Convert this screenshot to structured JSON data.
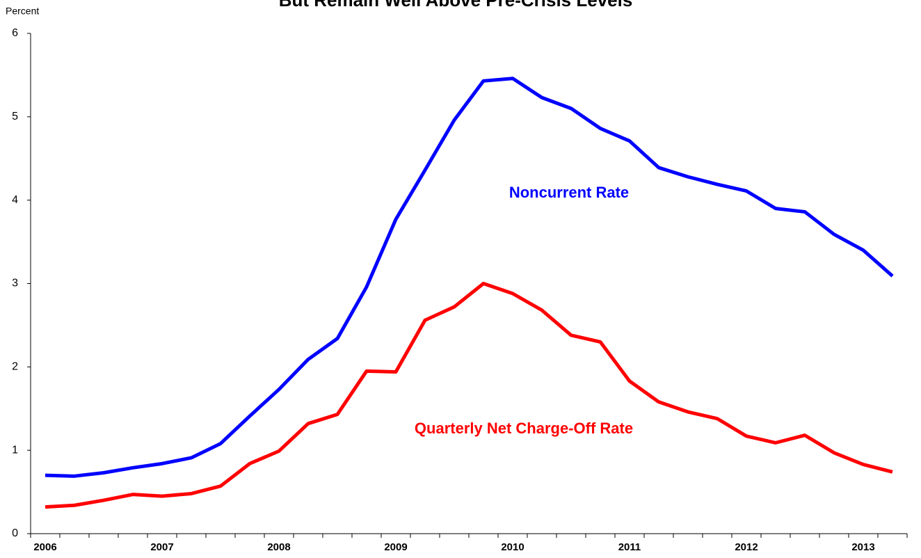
{
  "chart_data": {
    "type": "line",
    "title": "But Remain Well Above Pre-Crisis Levels",
    "y_label": "Percent",
    "categories": [
      "2006",
      null,
      null,
      null,
      "2007",
      null,
      null,
      null,
      "2008",
      null,
      null,
      null,
      "2009",
      null,
      null,
      null,
      "2010",
      null,
      null,
      null,
      "2011",
      null,
      null,
      null,
      "2012",
      null,
      null,
      null,
      "2013",
      null
    ],
    "series": [
      {
        "name": "Noncurrent Rate",
        "color": "#0000ff",
        "values": [
          0.7,
          0.69,
          0.73,
          0.79,
          0.84,
          0.91,
          1.08,
          1.41,
          1.73,
          2.09,
          2.34,
          2.96,
          3.77,
          4.36,
          4.96,
          5.43,
          5.46,
          5.23,
          5.1,
          4.86,
          4.71,
          4.39,
          4.28,
          4.19,
          4.11,
          3.9,
          3.86,
          3.59,
          3.4,
          3.09
        ]
      },
      {
        "name": "Quarterly Net Charge-Off Rate",
        "color": "#ff0000",
        "values": [
          0.32,
          0.34,
          0.4,
          0.47,
          0.45,
          0.48,
          0.57,
          0.84,
          0.99,
          1.32,
          1.43,
          1.95,
          1.94,
          2.56,
          2.72,
          3.0,
          2.88,
          2.68,
          2.38,
          2.3,
          1.83,
          1.58,
          1.46,
          1.38,
          1.17,
          1.09,
          1.18,
          0.97,
          0.83,
          0.74
        ]
      }
    ],
    "ylim": [
      0,
      6
    ],
    "yticks": [
      0,
      1,
      2,
      3,
      4,
      5,
      6
    ],
    "grid": false
  }
}
